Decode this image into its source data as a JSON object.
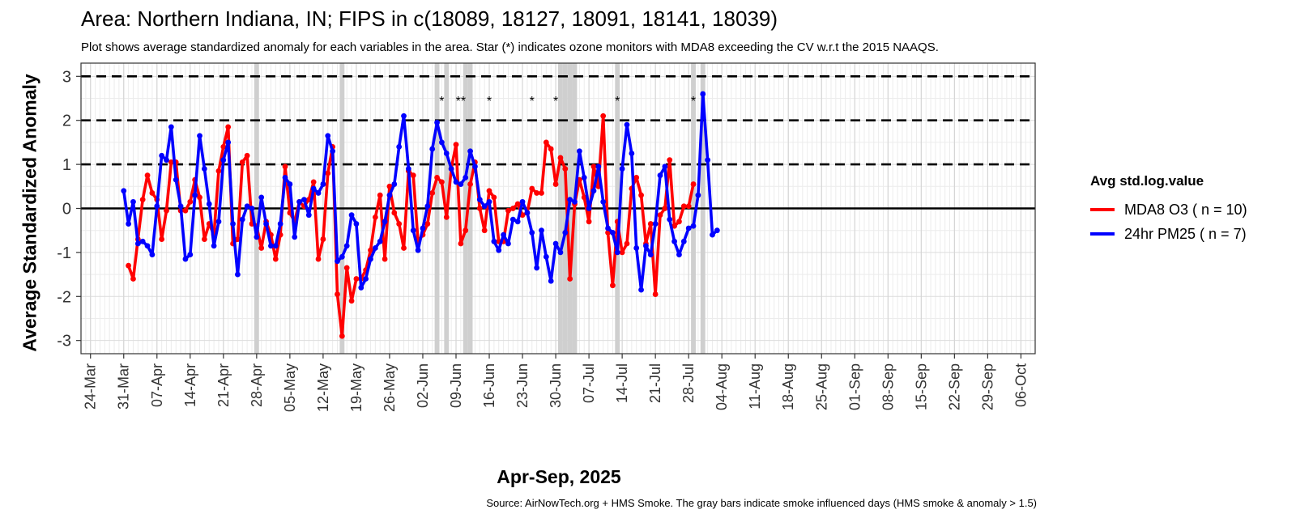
{
  "chart_data": {
    "type": "line",
    "title": "Area: Northern Indiana, IN; FIPS in c(18089, 18127, 18091, 18141, 18039)",
    "subtitle": "Plot shows average standardized anomaly for each variables in the area. Star (*) indicates ozone monitors with MDA8 exceeding the CV w.r.t the 2015 NAAQS.",
    "xlabel": "Apr-Sep, 2025",
    "ylabel": "Average Standardized Anomaly",
    "caption": "Source: AirNowTech.org + HMS Smoke. The gray bars indicate smoke influenced days (HMS smoke & anomaly > 1.5)",
    "legend_title": "Avg std.log.value",
    "legend_position": "right",
    "grid": true,
    "xlim": [
      "2025-03-22",
      "2025-10-09"
    ],
    "ylim": [
      -3.3,
      3.3
    ],
    "y_ticks": [
      3,
      2,
      1,
      0,
      -1,
      -2,
      -3
    ],
    "x_ticks": [
      {
        "date": "2025-03-24",
        "label": "24-Mar"
      },
      {
        "date": "2025-03-31",
        "label": "31-Mar"
      },
      {
        "date": "2025-04-07",
        "label": "07-Apr"
      },
      {
        "date": "2025-04-14",
        "label": "14-Apr"
      },
      {
        "date": "2025-04-21",
        "label": "21-Apr"
      },
      {
        "date": "2025-04-28",
        "label": "28-Apr"
      },
      {
        "date": "2025-05-05",
        "label": "05-May"
      },
      {
        "date": "2025-05-12",
        "label": "12-May"
      },
      {
        "date": "2025-05-19",
        "label": "19-May"
      },
      {
        "date": "2025-05-26",
        "label": "26-May"
      },
      {
        "date": "2025-06-02",
        "label": "02-Jun"
      },
      {
        "date": "2025-06-09",
        "label": "09-Jun"
      },
      {
        "date": "2025-06-16",
        "label": "16-Jun"
      },
      {
        "date": "2025-06-23",
        "label": "23-Jun"
      },
      {
        "date": "2025-06-30",
        "label": "30-Jun"
      },
      {
        "date": "2025-07-07",
        "label": "07-Jul"
      },
      {
        "date": "2025-07-14",
        "label": "14-Jul"
      },
      {
        "date": "2025-07-21",
        "label": "21-Jul"
      },
      {
        "date": "2025-07-28",
        "label": "28-Jul"
      },
      {
        "date": "2025-08-04",
        "label": "04-Aug"
      },
      {
        "date": "2025-08-11",
        "label": "11-Aug"
      },
      {
        "date": "2025-08-18",
        "label": "18-Aug"
      },
      {
        "date": "2025-08-25",
        "label": "25-Aug"
      },
      {
        "date": "2025-09-01",
        "label": "01-Sep"
      },
      {
        "date": "2025-09-08",
        "label": "08-Sep"
      },
      {
        "date": "2025-09-15",
        "label": "15-Sep"
      },
      {
        "date": "2025-09-22",
        "label": "22-Sep"
      },
      {
        "date": "2025-09-29",
        "label": "29-Sep"
      },
      {
        "date": "2025-10-06",
        "label": "06-Oct"
      }
    ],
    "reference_lines": [
      {
        "y": 3,
        "style": "dashed"
      },
      {
        "y": 2,
        "style": "dashed"
      },
      {
        "y": 1,
        "style": "dashed"
      },
      {
        "y": 0,
        "style": "solid"
      }
    ],
    "smoke_days": [
      "2025-04-28",
      "2025-05-16",
      "2025-06-05",
      "2025-06-07",
      "2025-06-11",
      "2025-06-12",
      "2025-07-01",
      "2025-07-02",
      "2025-07-03",
      "2025-07-04",
      "2025-07-13",
      "2025-07-29",
      "2025-07-31"
    ],
    "stars": [
      {
        "date": "2025-06-06",
        "label": "*"
      },
      {
        "date": "2025-06-10",
        "label": "**"
      },
      {
        "date": "2025-06-16",
        "label": "*"
      },
      {
        "date": "2025-06-25",
        "label": "*"
      },
      {
        "date": "2025-06-30",
        "label": "*"
      },
      {
        "date": "2025-07-13",
        "label": "*"
      },
      {
        "date": "2025-07-29",
        "label": "*"
      }
    ],
    "series": [
      {
        "name": "MDA8 O3 ( n = 10)",
        "color": "#ff0000",
        "start_date": "2025-04-01",
        "values": [
          -1.3,
          -1.6,
          -0.7,
          0.2,
          0.75,
          0.35,
          0.2,
          -0.7,
          -0.05,
          1.05,
          1.05,
          -0.05,
          -0.05,
          0.15,
          0.65,
          0.25,
          -0.7,
          -0.35,
          -0.6,
          0.85,
          1.4,
          1.85,
          -0.8,
          -0.7,
          1.05,
          1.2,
          -0.35,
          -0.4,
          -0.9,
          -0.3,
          -0.6,
          -1.15,
          -0.6,
          0.95,
          -0.1,
          -0.3,
          0.15,
          0.05,
          0.2,
          0.6,
          -1.15,
          -0.7,
          0.8,
          1.4,
          -1.95,
          -2.9,
          -1.35,
          -2.1,
          -1.6,
          -1.6,
          -1.4,
          -0.95,
          -0.2,
          0.3,
          -1.15,
          0.5,
          -0.1,
          -0.35,
          -0.9,
          0.85,
          0.75,
          -0.75,
          -0.6,
          -0.35,
          0.35,
          0.7,
          0.6,
          -0.2,
          0.9,
          1.45,
          -0.8,
          -0.5,
          0.55,
          1.05,
          0.0,
          -0.5,
          0.4,
          0.25,
          -0.75,
          -0.75,
          -0.05,
          0.0,
          0.1,
          -0.15,
          -0.1,
          0.45,
          0.35,
          0.35,
          1.5,
          1.35,
          0.55,
          1.15,
          0.9,
          -1.6,
          0.1,
          0.65,
          0.25,
          -0.3,
          0.95,
          0.5,
          2.1,
          -0.55,
          -1.75,
          -0.3,
          -1.0,
          -0.8,
          0.45,
          0.7,
          0.3,
          -0.8,
          -0.35,
          -1.95,
          -0.15,
          0.0,
          1.1,
          -0.4,
          -0.3,
          0.05,
          0.05,
          0.55
        ],
        "gaps": [
          {
            "after": "2025-07-31",
            "resume": "2025-08-02"
          }
        ]
      },
      {
        "name": "24hr PM25 ( n = 7)",
        "color": "#0000ff",
        "start_date": "2025-03-31",
        "values": [
          0.4,
          -0.35,
          0.15,
          -0.8,
          -0.75,
          -0.85,
          -1.05,
          0.05,
          1.2,
          1.1,
          1.85,
          0.65,
          0.05,
          -1.15,
          -1.05,
          0.3,
          1.65,
          0.9,
          0.1,
          -0.85,
          -0.3,
          1.1,
          1.5,
          -0.35,
          -1.5,
          -0.25,
          0.05,
          0.0,
          -0.65,
          0.25,
          -0.35,
          -0.85,
          -0.85,
          -0.35,
          0.7,
          0.55,
          -0.65,
          0.15,
          0.2,
          -0.15,
          0.45,
          0.35,
          0.55,
          1.65,
          1.3,
          -1.2,
          -1.1,
          -0.85,
          -0.15,
          -0.35,
          -1.8,
          -1.6,
          -1.15,
          -0.9,
          -0.75,
          -0.3,
          0.3,
          0.55,
          1.4,
          2.1,
          0.9,
          -0.5,
          -0.95,
          -0.45,
          0.05,
          1.35,
          1.95,
          1.5,
          1.25,
          0.9,
          0.6,
          0.55,
          0.7,
          1.3,
          0.95,
          0.2,
          0.05,
          0.15,
          -0.75,
          -0.95,
          -0.6,
          -0.8,
          -0.25,
          -0.3,
          0.15,
          -0.1,
          -0.55,
          -1.35,
          -0.5,
          -1.1,
          -1.65,
          -0.8,
          -1.0,
          -0.55,
          0.2,
          0.15,
          1.3,
          0.7,
          0.0,
          0.4,
          0.95,
          0.15,
          -0.45,
          -0.55,
          -1.0,
          0.9,
          1.9,
          1.25,
          -0.9,
          -1.85,
          -0.85,
          -1.05,
          -0.35,
          0.75,
          0.95,
          -0.25,
          -0.75,
          -1.05,
          -0.75,
          -0.45,
          -0.4,
          0.3,
          2.6,
          1.1,
          -0.6,
          -0.5
        ]
      }
    ]
  }
}
